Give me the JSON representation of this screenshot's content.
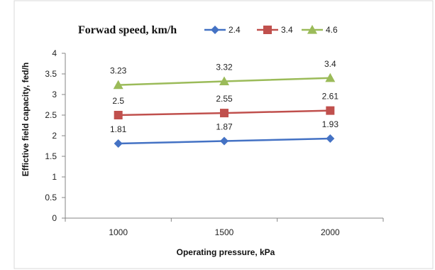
{
  "chart_data": {
    "type": "line",
    "title": "",
    "legend_title": "Forwad speed, km/h",
    "legend_position": "top-right",
    "xlabel": "Operating pressure, kPa",
    "ylabel": "Effictive field capacity, fed/h",
    "categories": [
      "1000",
      "1500",
      "2000"
    ],
    "ylim": [
      0,
      4
    ],
    "yticks": [
      "0",
      "0.5",
      "1",
      "1.5",
      "2",
      "2.5",
      "3",
      "3.5",
      "4"
    ],
    "grid": false,
    "series": [
      {
        "name": "2.4",
        "values": [
          1.81,
          1.87,
          1.93
        ],
        "labels": [
          "1.81",
          "1.87",
          "1.93"
        ],
        "color": "#4472C4",
        "marker": "diamond"
      },
      {
        "name": "3.4",
        "values": [
          2.5,
          2.55,
          2.61
        ],
        "labels": [
          "2.5",
          "2.55",
          "2.61"
        ],
        "color": "#C0504D",
        "marker": "square"
      },
      {
        "name": "4.6",
        "values": [
          3.23,
          3.32,
          3.4
        ],
        "labels": [
          "3.23",
          "3.32",
          "3.4"
        ],
        "color": "#9BBB59",
        "marker": "triangle"
      }
    ]
  }
}
